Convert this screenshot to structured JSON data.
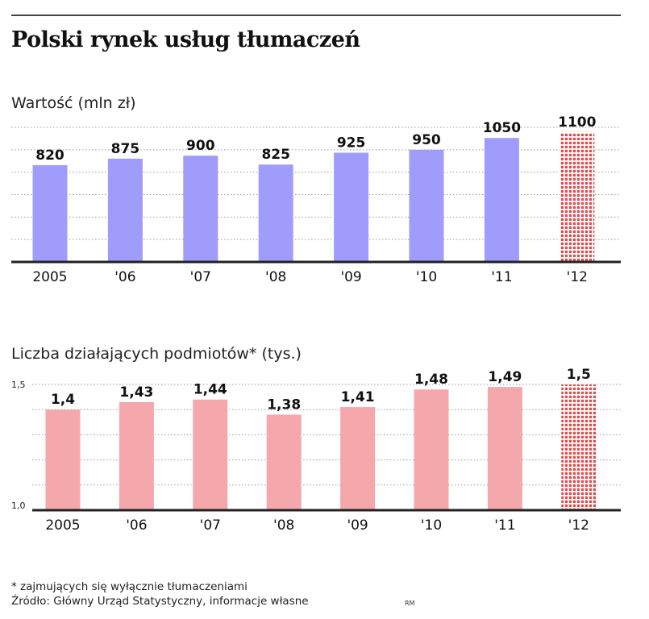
{
  "header": {
    "title": "Polski rynek usług tłumaczeń"
  },
  "colors": {
    "value_bar": "#9f9cfc",
    "count_bar": "#f4a8ab",
    "forecast_dot": "#e24a4a",
    "axis": "#222222",
    "grid": "#9a9a9a"
  },
  "chart_data": [
    {
      "type": "bar",
      "title": "Wartość (mln zł)",
      "categories": [
        "2005",
        "'06",
        "'07",
        "'08",
        "'09",
        "'10",
        "'11",
        "'12"
      ],
      "values": [
        820,
        875,
        900,
        825,
        925,
        950,
        1050,
        1100
      ],
      "data_labels": [
        "820",
        "875",
        "900",
        "825",
        "925",
        "950",
        "1050",
        "1100"
      ],
      "ylim": [
        0,
        1140
      ],
      "grid": true,
      "forecast_index": 7
    },
    {
      "type": "bar",
      "title": "Liczba działających podmiotów* (tys.)",
      "categories": [
        "2005",
        "'06",
        "'07",
        "'08",
        "'09",
        "'10",
        "'11",
        "'12"
      ],
      "values": [
        1.4,
        1.43,
        1.44,
        1.38,
        1.41,
        1.48,
        1.49,
        1.5
      ],
      "data_labels": [
        "1,4",
        "1,43",
        "1,44",
        "1,38",
        "1,41",
        "1,48",
        "1,49",
        "1,5"
      ],
      "ylim": [
        1.0,
        1.5
      ],
      "y_tick_labels": [
        "1,0",
        "1,5"
      ],
      "grid": true,
      "forecast_index": 7
    }
  ],
  "footer": {
    "note": "* zajmujących się wyłącznie tłumaczeniami",
    "source": "Źródło: Główny Urząd Statystyczny, informacje własne",
    "credit": "RM"
  }
}
